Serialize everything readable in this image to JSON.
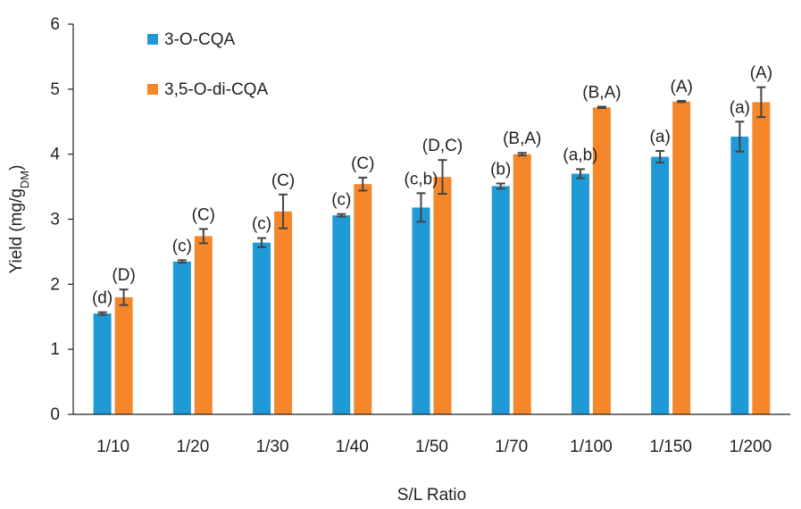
{
  "chart_data": {
    "type": "bar",
    "title": "",
    "xlabel": "S/L Ratio",
    "ylabel_main": "Yield (mg/g",
    "ylabel_sub": "DM",
    "ylabel_close": ")",
    "ylim": [
      0,
      6
    ],
    "yticks": [
      0,
      1,
      2,
      3,
      4,
      5,
      6
    ],
    "categories": [
      "1/10",
      "1/20",
      "1/30",
      "1/40",
      "1/50",
      "1/70",
      "1/100",
      "1/150",
      "1/200"
    ],
    "legend_position": "top-left",
    "series": [
      {
        "name": "3-O-CQA",
        "color": "#1f9ad6",
        "values": [
          1.55,
          2.35,
          2.64,
          3.06,
          3.18,
          3.51,
          3.7,
          3.96,
          4.27
        ],
        "errors": [
          0.02,
          0.02,
          0.07,
          0.02,
          0.22,
          0.04,
          0.07,
          0.09,
          0.23
        ],
        "labels": [
          "(d)",
          "(c)",
          "(c)",
          "(c)",
          "(c,b)",
          "(b)",
          "(a,b)",
          "(a)",
          "(a)"
        ]
      },
      {
        "name": "3,5-O-di-CQA",
        "color": "#f5872a",
        "values": [
          1.8,
          2.74,
          3.12,
          3.54,
          3.65,
          4.0,
          4.72,
          4.81,
          4.8
        ],
        "errors": [
          0.12,
          0.11,
          0.26,
          0.1,
          0.26,
          0.02,
          0.01,
          0.01,
          0.23
        ],
        "labels": [
          "(D)",
          "(C)",
          "(C)",
          "(C)",
          "(D,C)",
          "(B,A)",
          "(B,A)",
          "(A)",
          "(A)"
        ]
      }
    ]
  }
}
